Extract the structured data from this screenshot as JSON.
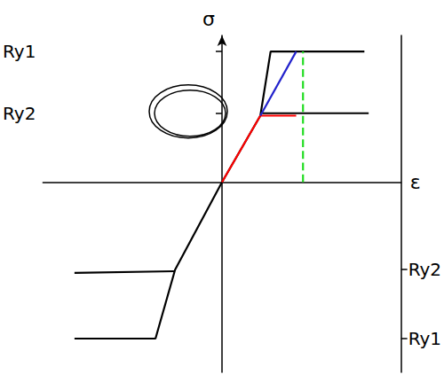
{
  "chart_data": {
    "type": "line",
    "x_label": "ε",
    "y_label": "σ",
    "xlim": [
      -21,
      21
    ],
    "xticks": [],
    "ylim": [
      -23.7,
      18.3
    ],
    "yticks": [
      {
        "value": 16.3,
        "label": "Ry1"
      },
      {
        "value": 8.6,
        "label": "Ry2"
      },
      {
        "value": -10.9,
        "label": "Ry2"
      },
      {
        "value": -19.5,
        "label": "Ry1"
      }
    ],
    "tick_labels": "y",
    "grid": false,
    "series": [
      {
        "color": "#000000",
        "line_style": "solid",
        "x": [
          -17.3,
          -7.8,
          -5.5,
          0,
          4.5,
          5.7,
          16.7
        ],
        "values": [
          -19.5,
          -19.5,
          -10.9,
          0,
          8.3,
          16.3,
          16.3
        ]
      },
      {
        "color": "#000000",
        "line_style": "solid",
        "x": [
          -17.3,
          -5.6
        ],
        "values": [
          -11.3,
          -11.1
        ]
      },
      {
        "color": "#000000",
        "line_style": "solid",
        "x": [
          4.7,
          17.2
        ],
        "values": [
          8.6,
          8.6
        ]
      },
      {
        "color": "#ff0000",
        "line_style": "solid",
        "x": [
          0,
          4.5,
          8.7
        ],
        "values": [
          0,
          8.3,
          8.3
        ]
      },
      {
        "color": "#2222cc",
        "line_style": "solid",
        "x": [
          4.5,
          8.7
        ],
        "values": [
          8.3,
          16.3
        ]
      },
      {
        "color": "#22dd22",
        "line_style": "dashed",
        "x": [
          9.5,
          9.5
        ],
        "values": [
          0,
          16.3
        ]
      }
    ]
  }
}
